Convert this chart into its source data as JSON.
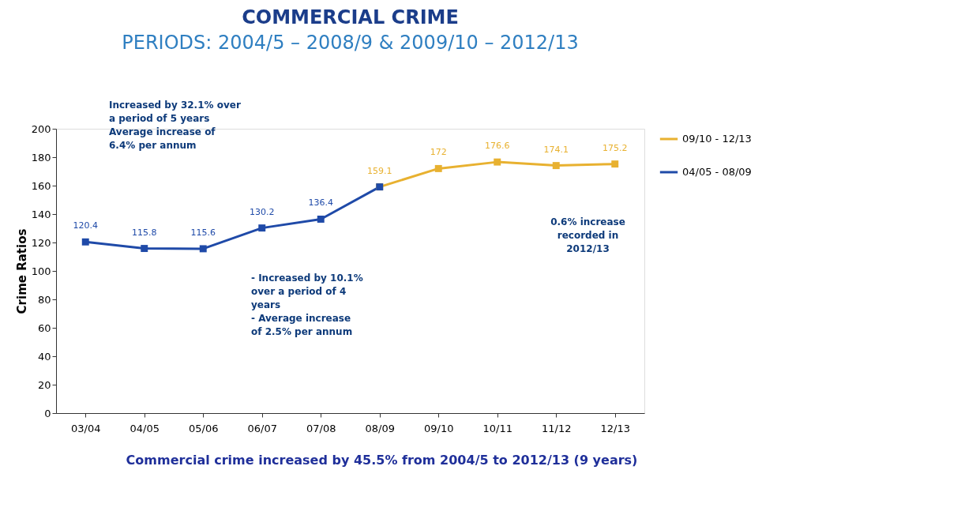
{
  "chart_data": {
    "type": "line",
    "title": "COMMERCIAL CRIME",
    "subtitle": "PERIODS: 2004/5 – 2008/9 & 2009/10 – 2012/13",
    "ylabel": "Crime Ratios",
    "categories": [
      "03/04",
      "04/05",
      "05/06",
      "06/07",
      "07/08",
      "08/09",
      "09/10",
      "10/11",
      "11/12",
      "12/13"
    ],
    "series": [
      {
        "name": "09/10 - 12/13",
        "color": "#e8b130",
        "values": [
          null,
          null,
          null,
          null,
          null,
          159.1,
          172,
          176.6,
          174.1,
          175.2
        ],
        "value_labels": [
          null,
          null,
          null,
          null,
          null,
          "159.1",
          "172",
          "176.6",
          "174.1",
          "175.2"
        ]
      },
      {
        "name": "04/05 - 08/09",
        "color": "#1f4aa8",
        "values": [
          120.4,
          115.8,
          115.6,
          130.2,
          136.4,
          159.1,
          null,
          null,
          null,
          null
        ],
        "value_labels": [
          "120.4",
          "115.8",
          "115.6",
          "130.2",
          "136.4",
          null,
          null,
          null,
          null,
          null
        ]
      }
    ],
    "ylim": [
      0,
      200
    ],
    "yticks": [
      0,
      20,
      40,
      60,
      80,
      100,
      120,
      140,
      160,
      180,
      200
    ],
    "grid": false,
    "legend": "right",
    "marker": "square",
    "line_style": "solid",
    "annotations": [
      "Increased by 32.1% over\na period of 5 years\nAverage increase of\n6.4% per annum",
      "- Increased by 10.1%\n  over a period of 4\n  years\n- Average increase\n  of 2.5% per annum",
      "0.6% increase\nrecorded in\n2012/13",
      "Commercial crime increased by 45.5% from 2004/5 to 2012/13 (9 years)"
    ]
  }
}
